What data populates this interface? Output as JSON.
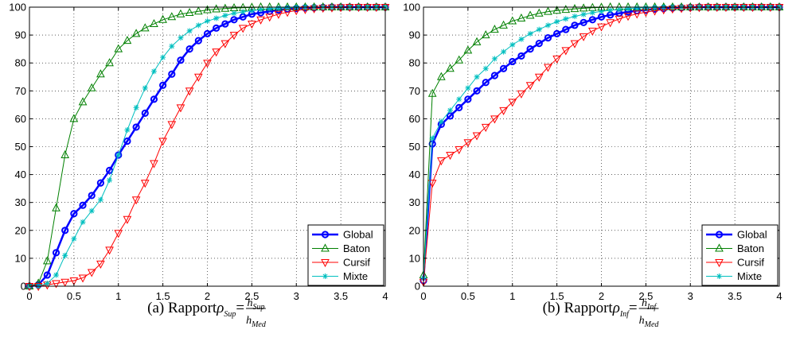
{
  "chart_data": [
    {
      "type": "line",
      "caption": {
        "prefix": "(a) Rapport ",
        "symbol": "ρ",
        "sub": "Sup",
        "num": "h",
        "num_sub": "Sup",
        "den": "h",
        "den_sub": "Med"
      },
      "xlim": [
        0,
        4
      ],
      "ylim": [
        0,
        100
      ],
      "xticks": [
        "0",
        "0.5",
        "1",
        "1.5",
        "2",
        "2.5",
        "3",
        "3.5",
        "4"
      ],
      "yticks": [
        "0",
        "10",
        "20",
        "30",
        "40",
        "50",
        "60",
        "70",
        "80",
        "90",
        "100"
      ],
      "grid": true,
      "legend_position": "bottom-right",
      "x": [
        0,
        0.1,
        0.2,
        0.3,
        0.4,
        0.5,
        0.6,
        0.7,
        0.8,
        0.9,
        1.0,
        1.1,
        1.2,
        1.3,
        1.4,
        1.5,
        1.6,
        1.7,
        1.8,
        1.9,
        2.0,
        2.1,
        2.2,
        2.3,
        2.4,
        2.5,
        2.6,
        2.7,
        2.8,
        2.9,
        3.0,
        3.1,
        3.2,
        3.3,
        3.4,
        3.5,
        3.6,
        3.7,
        3.8,
        3.9,
        4.0
      ],
      "series": [
        {
          "name": "Global",
          "color": "#0000ff",
          "marker": "circle",
          "values": [
            0,
            0.5,
            4,
            12,
            20,
            26,
            29,
            32.5,
            37,
            41.5,
            47,
            52,
            57,
            62,
            67,
            72,
            76,
            81,
            85,
            88,
            90.5,
            92.5,
            94,
            95.5,
            96.5,
            97.5,
            98,
            98.5,
            99,
            99.3,
            99.5,
            99.7,
            99.8,
            99.9,
            100,
            100,
            100,
            100,
            100,
            100,
            100
          ]
        },
        {
          "name": "Baton",
          "color": "#008000",
          "marker": "triangle-up",
          "values": [
            0,
            1,
            9,
            28,
            47,
            60,
            66,
            71,
            76,
            80,
            85,
            88,
            90.5,
            92.5,
            94,
            95.5,
            96.5,
            97.5,
            98,
            98.5,
            99,
            99.3,
            99.5,
            99.7,
            99.8,
            99.9,
            100,
            100,
            100,
            100,
            100,
            100,
            100,
            100,
            100,
            100,
            100,
            100,
            100,
            100,
            100
          ]
        },
        {
          "name": "Cursif",
          "color": "#ff0000",
          "marker": "triangle-down",
          "values": [
            0,
            0,
            0.5,
            1,
            1.5,
            2,
            3,
            5,
            8,
            13,
            19,
            24,
            31,
            37,
            44,
            52,
            58,
            64,
            70,
            75,
            80,
            84,
            87,
            90,
            92.5,
            94,
            95.5,
            96.5,
            97.5,
            98.2,
            98.8,
            99.2,
            99.5,
            99.7,
            99.8,
            99.9,
            100,
            100,
            100,
            100,
            100
          ]
        },
        {
          "name": "Mixte",
          "color": "#00bfbf",
          "marker": "star",
          "values": [
            0,
            0,
            1,
            4,
            11,
            17,
            23,
            27,
            31,
            38,
            47,
            56,
            64,
            71,
            77,
            82,
            86,
            89,
            91.5,
            93.5,
            95,
            96,
            97,
            97.8,
            98.3,
            98.8,
            99.2,
            99.5,
            99.7,
            99.8,
            99.9,
            100,
            100,
            100,
            100,
            100,
            100,
            100,
            100,
            100,
            100
          ]
        }
      ]
    },
    {
      "type": "line",
      "caption": {
        "prefix": "(b) Rapport ",
        "symbol": "ρ",
        "sub": "Inf",
        "num": "h",
        "num_sub": "Inf",
        "den": "h",
        "den_sub": "Med"
      },
      "xlim": [
        0,
        4
      ],
      "ylim": [
        0,
        100
      ],
      "xticks": [
        "0",
        "0.5",
        "1",
        "1.5",
        "2",
        "2.5",
        "3",
        "3.5",
        "4"
      ],
      "yticks": [
        "0",
        "10",
        "20",
        "30",
        "40",
        "50",
        "60",
        "70",
        "80",
        "90",
        "100"
      ],
      "grid": true,
      "legend_position": "bottom-right",
      "x": [
        0,
        0.1,
        0.2,
        0.3,
        0.4,
        0.5,
        0.6,
        0.7,
        0.8,
        0.9,
        1.0,
        1.1,
        1.2,
        1.3,
        1.4,
        1.5,
        1.6,
        1.7,
        1.8,
        1.9,
        2.0,
        2.1,
        2.2,
        2.3,
        2.4,
        2.5,
        2.6,
        2.7,
        2.8,
        2.9,
        3.0,
        3.1,
        3.2,
        3.3,
        3.4,
        3.5,
        3.6,
        3.7,
        3.8,
        3.9,
        4.0
      ],
      "series": [
        {
          "name": "Global",
          "color": "#0000ff",
          "marker": "circle",
          "values": [
            2,
            51,
            58,
            61,
            64,
            67,
            70,
            73,
            75.5,
            78,
            80.5,
            82.5,
            85,
            87,
            89,
            90.5,
            92,
            93.5,
            94.5,
            95.5,
            96.5,
            97.2,
            97.8,
            98.3,
            98.7,
            99,
            99.3,
            99.5,
            99.7,
            99.8,
            99.9,
            100,
            100,
            100,
            100,
            100,
            100,
            100,
            100,
            100,
            100
          ]
        },
        {
          "name": "Baton",
          "color": "#008000",
          "marker": "triangle-up",
          "values": [
            4,
            69,
            75,
            78,
            81,
            84.5,
            87.5,
            90,
            92,
            93.5,
            95,
            96,
            97,
            97.8,
            98.4,
            98.8,
            99.1,
            99.4,
            99.6,
            99.8,
            99.9,
            100,
            100,
            100,
            100,
            100,
            100,
            100,
            100,
            100,
            100,
            100,
            100,
            100,
            100,
            100,
            100,
            100,
            100,
            100,
            100
          ]
        },
        {
          "name": "Cursif",
          "color": "#ff0000",
          "marker": "triangle-down",
          "values": [
            1.5,
            37,
            45,
            47,
            49,
            51.5,
            54,
            57,
            60,
            63,
            66,
            69,
            72,
            75,
            78.5,
            81.5,
            84.5,
            87,
            89.5,
            91.5,
            93,
            94.5,
            95.8,
            96.8,
            97.6,
            98.2,
            98.7,
            99.1,
            99.4,
            99.6,
            99.8,
            99.9,
            100,
            100,
            100,
            100,
            100,
            100,
            100,
            100,
            100
          ]
        },
        {
          "name": "Mixte",
          "color": "#00bfbf",
          "marker": "star",
          "values": [
            3,
            53,
            59,
            63,
            67,
            71,
            75,
            78,
            81.5,
            84,
            86.5,
            88.5,
            90.5,
            92,
            93.5,
            94.8,
            95.8,
            96.7,
            97.4,
            98,
            98.5,
            98.9,
            99.2,
            99.5,
            99.7,
            99.8,
            99.9,
            100,
            100,
            100,
            100,
            100,
            100,
            100,
            100,
            100,
            100,
            100,
            100,
            100,
            100
          ]
        }
      ]
    }
  ]
}
